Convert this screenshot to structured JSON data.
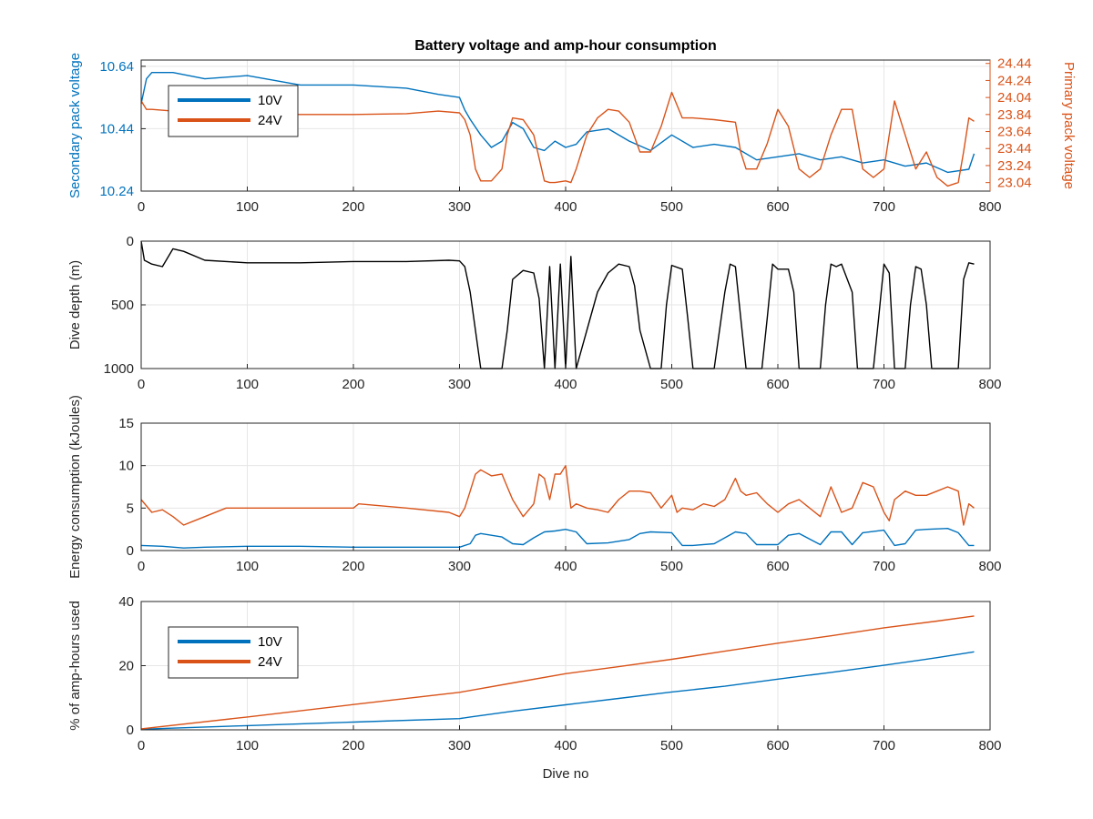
{
  "colors": {
    "series_10v": "#0072BD",
    "series_24v": "#D95319",
    "depth": "#000000",
    "grid": "#e6e6e6",
    "axis": "#262626"
  },
  "figure": {
    "title": "Battery voltage and amp-hour consumption",
    "xlabel": "Dive no"
  },
  "chart_data": [
    {
      "type": "line",
      "title": "Battery voltage and amp-hour consumption",
      "xlim": [
        0,
        800
      ],
      "x_ticks": [
        "0",
        "100",
        "200",
        "300",
        "400",
        "500",
        "600",
        "700",
        "800"
      ],
      "ylabel_left": "Secondary pack voltage",
      "ylabel_right": "Primary pack voltage",
      "ylim_left": [
        10.24,
        10.66
      ],
      "ylim_right": [
        22.94,
        24.48
      ],
      "y_ticks_left": [
        "10.24",
        "10.44",
        "10.64"
      ],
      "y_ticks_right": [
        "23.04",
        "23.24",
        "23.44",
        "23.64",
        "23.84",
        "24.04",
        "24.24",
        "24.44"
      ],
      "grid": true,
      "legend": {
        "placement": "top-left",
        "entries": [
          "10V",
          "24V"
        ]
      },
      "series": [
        {
          "name": "10V",
          "axis": "left",
          "x": [
            0,
            5,
            10,
            30,
            60,
            100,
            150,
            200,
            250,
            280,
            300,
            305,
            310,
            320,
            330,
            340,
            350,
            360,
            370,
            380,
            390,
            400,
            410,
            420,
            440,
            460,
            480,
            500,
            520,
            540,
            560,
            580,
            600,
            620,
            640,
            660,
            680,
            700,
            720,
            740,
            760,
            780,
            785
          ],
          "y": [
            10.52,
            10.6,
            10.62,
            10.62,
            10.6,
            10.61,
            10.58,
            10.58,
            10.57,
            10.55,
            10.54,
            10.5,
            10.47,
            10.42,
            10.38,
            10.4,
            10.46,
            10.44,
            10.38,
            10.37,
            10.4,
            10.38,
            10.39,
            10.43,
            10.44,
            10.4,
            10.37,
            10.42,
            10.38,
            10.39,
            10.38,
            10.34,
            10.35,
            10.36,
            10.34,
            10.35,
            10.33,
            10.34,
            10.32,
            10.33,
            10.3,
            10.31,
            10.36
          ]
        },
        {
          "name": "24V",
          "axis": "right",
          "x": [
            0,
            5,
            10,
            30,
            50,
            100,
            150,
            200,
            250,
            280,
            300,
            305,
            310,
            315,
            320,
            330,
            340,
            345,
            350,
            360,
            370,
            380,
            385,
            390,
            400,
            405,
            410,
            420,
            430,
            440,
            450,
            460,
            470,
            480,
            490,
            500,
            510,
            520,
            540,
            560,
            565,
            570,
            580,
            590,
            600,
            610,
            620,
            630,
            640,
            650,
            660,
            670,
            680,
            690,
            700,
            710,
            720,
            730,
            740,
            750,
            760,
            770,
            775,
            780,
            785
          ],
          "y": [
            24.0,
            23.9,
            23.9,
            23.88,
            23.84,
            23.84,
            23.84,
            23.84,
            23.85,
            23.88,
            23.86,
            23.78,
            23.6,
            23.2,
            23.06,
            23.06,
            23.2,
            23.6,
            23.8,
            23.78,
            23.6,
            23.06,
            23.04,
            23.04,
            23.06,
            23.04,
            23.2,
            23.6,
            23.8,
            23.9,
            23.88,
            23.75,
            23.4,
            23.4,
            23.7,
            24.1,
            23.8,
            23.8,
            23.78,
            23.75,
            23.4,
            23.2,
            23.2,
            23.5,
            23.9,
            23.7,
            23.2,
            23.1,
            23.2,
            23.6,
            23.9,
            23.9,
            23.2,
            23.1,
            23.2,
            24.0,
            23.6,
            23.2,
            23.4,
            23.1,
            23.0,
            23.04,
            23.4,
            23.8,
            23.76
          ]
        }
      ]
    },
    {
      "type": "line",
      "xlim": [
        0,
        800
      ],
      "x_ticks": [
        "0",
        "100",
        "200",
        "300",
        "400",
        "500",
        "600",
        "700",
        "800"
      ],
      "ylabel": "Dive depth (m)",
      "ylim": [
        0,
        1000
      ],
      "y_reversed": true,
      "y_ticks": [
        "0",
        "500",
        "1000"
      ],
      "grid": true,
      "series": [
        {
          "name": "",
          "x": [
            0,
            3,
            10,
            20,
            30,
            40,
            60,
            100,
            150,
            200,
            250,
            290,
            300,
            305,
            310,
            315,
            320,
            340,
            345,
            350,
            360,
            370,
            375,
            380,
            385,
            390,
            395,
            400,
            405,
            410,
            420,
            430,
            440,
            450,
            460,
            465,
            470,
            480,
            490,
            495,
            500,
            510,
            515,
            520,
            540,
            550,
            555,
            560,
            565,
            570,
            585,
            590,
            595,
            600,
            610,
            615,
            620,
            625,
            630,
            640,
            645,
            650,
            655,
            660,
            670,
            675,
            680,
            690,
            695,
            700,
            705,
            710,
            720,
            725,
            730,
            735,
            740,
            745,
            750,
            760,
            770,
            775,
            780,
            785
          ],
          "y": [
            0,
            150,
            180,
            200,
            60,
            80,
            150,
            170,
            170,
            160,
            160,
            150,
            155,
            200,
            400,
            700,
            1000,
            1000,
            700,
            300,
            230,
            250,
            450,
            1000,
            200,
            1000,
            180,
            1000,
            120,
            1000,
            700,
            400,
            250,
            180,
            200,
            350,
            700,
            1000,
            1000,
            500,
            190,
            220,
            600,
            1000,
            1000,
            400,
            180,
            200,
            600,
            1000,
            1000,
            600,
            180,
            220,
            220,
            400,
            1000,
            1000,
            1000,
            1000,
            500,
            180,
            200,
            180,
            400,
            1000,
            1000,
            1000,
            600,
            180,
            250,
            1000,
            1000,
            500,
            200,
            220,
            500,
            1000,
            1000,
            1000,
            1000,
            300,
            170,
            180
          ]
        }
      ]
    },
    {
      "type": "line",
      "xlim": [
        0,
        800
      ],
      "x_ticks": [
        "0",
        "100",
        "200",
        "300",
        "400",
        "500",
        "600",
        "700",
        "800"
      ],
      "ylabel": "Energy consumption (kJoules)",
      "ylim": [
        0,
        15
      ],
      "y_ticks": [
        "0",
        "5",
        "10",
        "15"
      ],
      "grid": true,
      "series": [
        {
          "name": "10V",
          "x": [
            0,
            20,
            40,
            60,
            100,
            150,
            200,
            250,
            300,
            310,
            315,
            320,
            340,
            350,
            360,
            370,
            380,
            390,
            400,
            410,
            420,
            440,
            460,
            470,
            480,
            500,
            510,
            520,
            540,
            560,
            570,
            580,
            600,
            610,
            620,
            640,
            650,
            660,
            670,
            680,
            700,
            710,
            720,
            730,
            740,
            760,
            770,
            780,
            785
          ],
          "y": [
            0.6,
            0.5,
            0.3,
            0.4,
            0.5,
            0.5,
            0.4,
            0.4,
            0.4,
            0.8,
            1.8,
            2.0,
            1.6,
            0.8,
            0.7,
            1.5,
            2.2,
            2.3,
            2.5,
            2.2,
            0.8,
            0.9,
            1.3,
            2.0,
            2.2,
            2.1,
            0.6,
            0.6,
            0.8,
            2.2,
            2.0,
            0.7,
            0.7,
            1.8,
            2.0,
            0.7,
            2.2,
            2.2,
            0.7,
            2.1,
            2.4,
            0.6,
            0.8,
            2.4,
            2.5,
            2.6,
            2.1,
            0.6,
            0.6
          ]
        },
        {
          "name": "24V",
          "x": [
            0,
            10,
            20,
            30,
            40,
            50,
            60,
            80,
            100,
            150,
            200,
            205,
            250,
            290,
            300,
            305,
            310,
            315,
            320,
            330,
            340,
            345,
            350,
            360,
            370,
            375,
            380,
            385,
            390,
            395,
            400,
            405,
            410,
            420,
            430,
            440,
            450,
            460,
            470,
            480,
            490,
            500,
            505,
            510,
            520,
            530,
            540,
            550,
            560,
            565,
            570,
            580,
            590,
            600,
            610,
            620,
            630,
            640,
            650,
            660,
            670,
            680,
            690,
            700,
            705,
            710,
            720,
            730,
            740,
            750,
            760,
            770,
            775,
            780,
            785
          ],
          "y": [
            6.0,
            4.5,
            4.8,
            4.0,
            3.0,
            3.5,
            4.0,
            5.0,
            5.0,
            5.0,
            5.0,
            5.5,
            5.0,
            4.5,
            4.0,
            5.0,
            7.0,
            9.0,
            9.5,
            8.8,
            9.0,
            7.5,
            6.0,
            4.0,
            5.5,
            9.0,
            8.5,
            6.0,
            9.0,
            9.0,
            10.0,
            5.0,
            5.5,
            5.0,
            4.8,
            4.5,
            6.0,
            7.0,
            7.0,
            6.8,
            5.0,
            6.5,
            4.5,
            5.0,
            4.8,
            5.5,
            5.2,
            6.0,
            8.5,
            7.0,
            6.5,
            6.8,
            5.5,
            4.5,
            5.5,
            6.0,
            5.0,
            4.0,
            7.5,
            4.5,
            5.0,
            8.0,
            7.5,
            4.5,
            3.5,
            6.0,
            7.0,
            6.5,
            6.5,
            7.0,
            7.5,
            7.0,
            3.0,
            5.5,
            5.0
          ]
        }
      ]
    },
    {
      "type": "line",
      "xlim": [
        0,
        800
      ],
      "x_ticks": [
        "0",
        "100",
        "200",
        "300",
        "400",
        "500",
        "600",
        "700",
        "800"
      ],
      "xlabel": "Dive no",
      "ylabel": "% of amp-hours used",
      "ylim": [
        0,
        40
      ],
      "y_ticks": [
        "0",
        "20",
        "40"
      ],
      "grid": true,
      "legend": {
        "placement": "top-left",
        "entries": [
          "10V",
          "24V"
        ]
      },
      "series": [
        {
          "name": "10V",
          "x": [
            0,
            100,
            200,
            300,
            310,
            350,
            400,
            450,
            500,
            550,
            600,
            650,
            700,
            750,
            785
          ],
          "y": [
            0.2,
            1.3,
            2.4,
            3.5,
            4.0,
            5.8,
            7.8,
            9.8,
            11.8,
            13.6,
            15.8,
            17.9,
            20.1,
            22.5,
            24.3
          ]
        },
        {
          "name": "24V",
          "x": [
            0,
            100,
            200,
            300,
            350,
            400,
            450,
            500,
            550,
            600,
            650,
            700,
            750,
            785
          ],
          "y": [
            0.3,
            4.0,
            7.9,
            11.7,
            14.6,
            17.5,
            19.7,
            22.0,
            24.5,
            27.0,
            29.3,
            31.8,
            33.9,
            35.5
          ]
        }
      ]
    }
  ]
}
